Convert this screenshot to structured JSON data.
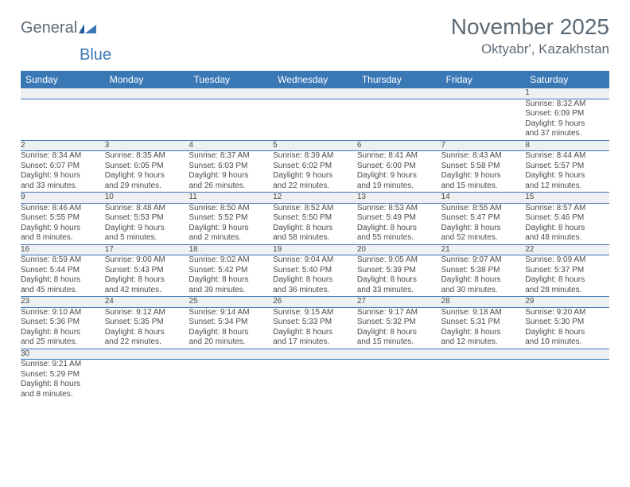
{
  "logo": {
    "text1": "General",
    "text2": "Blue"
  },
  "title": "November 2025",
  "location": "Oktyabr', Kazakhstan",
  "colors": {
    "header_bg": "#3a78b5",
    "header_text": "#ffffff",
    "daynum_bg": "#eef0f1",
    "text_gray": "#5f6b76",
    "body_text": "#4b4b4b",
    "rule": "#3a78b5"
  },
  "weekdays": [
    "Sunday",
    "Monday",
    "Tuesday",
    "Wednesday",
    "Thursday",
    "Friday",
    "Saturday"
  ],
  "weeks": [
    [
      null,
      null,
      null,
      null,
      null,
      null,
      {
        "n": "1",
        "sr": "Sunrise: 8:32 AM",
        "ss": "Sunset: 6:09 PM",
        "d1": "Daylight: 9 hours",
        "d2": "and 37 minutes."
      }
    ],
    [
      {
        "n": "2",
        "sr": "Sunrise: 8:34 AM",
        "ss": "Sunset: 6:07 PM",
        "d1": "Daylight: 9 hours",
        "d2": "and 33 minutes."
      },
      {
        "n": "3",
        "sr": "Sunrise: 8:35 AM",
        "ss": "Sunset: 6:05 PM",
        "d1": "Daylight: 9 hours",
        "d2": "and 29 minutes."
      },
      {
        "n": "4",
        "sr": "Sunrise: 8:37 AM",
        "ss": "Sunset: 6:03 PM",
        "d1": "Daylight: 9 hours",
        "d2": "and 26 minutes."
      },
      {
        "n": "5",
        "sr": "Sunrise: 8:39 AM",
        "ss": "Sunset: 6:02 PM",
        "d1": "Daylight: 9 hours",
        "d2": "and 22 minutes."
      },
      {
        "n": "6",
        "sr": "Sunrise: 8:41 AM",
        "ss": "Sunset: 6:00 PM",
        "d1": "Daylight: 9 hours",
        "d2": "and 19 minutes."
      },
      {
        "n": "7",
        "sr": "Sunrise: 8:43 AM",
        "ss": "Sunset: 5:58 PM",
        "d1": "Daylight: 9 hours",
        "d2": "and 15 minutes."
      },
      {
        "n": "8",
        "sr": "Sunrise: 8:44 AM",
        "ss": "Sunset: 5:57 PM",
        "d1": "Daylight: 9 hours",
        "d2": "and 12 minutes."
      }
    ],
    [
      {
        "n": "9",
        "sr": "Sunrise: 8:46 AM",
        "ss": "Sunset: 5:55 PM",
        "d1": "Daylight: 9 hours",
        "d2": "and 8 minutes."
      },
      {
        "n": "10",
        "sr": "Sunrise: 8:48 AM",
        "ss": "Sunset: 5:53 PM",
        "d1": "Daylight: 9 hours",
        "d2": "and 5 minutes."
      },
      {
        "n": "11",
        "sr": "Sunrise: 8:50 AM",
        "ss": "Sunset: 5:52 PM",
        "d1": "Daylight: 9 hours",
        "d2": "and 2 minutes."
      },
      {
        "n": "12",
        "sr": "Sunrise: 8:52 AM",
        "ss": "Sunset: 5:50 PM",
        "d1": "Daylight: 8 hours",
        "d2": "and 58 minutes."
      },
      {
        "n": "13",
        "sr": "Sunrise: 8:53 AM",
        "ss": "Sunset: 5:49 PM",
        "d1": "Daylight: 8 hours",
        "d2": "and 55 minutes."
      },
      {
        "n": "14",
        "sr": "Sunrise: 8:55 AM",
        "ss": "Sunset: 5:47 PM",
        "d1": "Daylight: 8 hours",
        "d2": "and 52 minutes."
      },
      {
        "n": "15",
        "sr": "Sunrise: 8:57 AM",
        "ss": "Sunset: 5:46 PM",
        "d1": "Daylight: 8 hours",
        "d2": "and 48 minutes."
      }
    ],
    [
      {
        "n": "16",
        "sr": "Sunrise: 8:59 AM",
        "ss": "Sunset: 5:44 PM",
        "d1": "Daylight: 8 hours",
        "d2": "and 45 minutes."
      },
      {
        "n": "17",
        "sr": "Sunrise: 9:00 AM",
        "ss": "Sunset: 5:43 PM",
        "d1": "Daylight: 8 hours",
        "d2": "and 42 minutes."
      },
      {
        "n": "18",
        "sr": "Sunrise: 9:02 AM",
        "ss": "Sunset: 5:42 PM",
        "d1": "Daylight: 8 hours",
        "d2": "and 39 minutes."
      },
      {
        "n": "19",
        "sr": "Sunrise: 9:04 AM",
        "ss": "Sunset: 5:40 PM",
        "d1": "Daylight: 8 hours",
        "d2": "and 36 minutes."
      },
      {
        "n": "20",
        "sr": "Sunrise: 9:05 AM",
        "ss": "Sunset: 5:39 PM",
        "d1": "Daylight: 8 hours",
        "d2": "and 33 minutes."
      },
      {
        "n": "21",
        "sr": "Sunrise: 9:07 AM",
        "ss": "Sunset: 5:38 PM",
        "d1": "Daylight: 8 hours",
        "d2": "and 30 minutes."
      },
      {
        "n": "22",
        "sr": "Sunrise: 9:09 AM",
        "ss": "Sunset: 5:37 PM",
        "d1": "Daylight: 8 hours",
        "d2": "and 28 minutes."
      }
    ],
    [
      {
        "n": "23",
        "sr": "Sunrise: 9:10 AM",
        "ss": "Sunset: 5:36 PM",
        "d1": "Daylight: 8 hours",
        "d2": "and 25 minutes."
      },
      {
        "n": "24",
        "sr": "Sunrise: 9:12 AM",
        "ss": "Sunset: 5:35 PM",
        "d1": "Daylight: 8 hours",
        "d2": "and 22 minutes."
      },
      {
        "n": "25",
        "sr": "Sunrise: 9:14 AM",
        "ss": "Sunset: 5:34 PM",
        "d1": "Daylight: 8 hours",
        "d2": "and 20 minutes."
      },
      {
        "n": "26",
        "sr": "Sunrise: 9:15 AM",
        "ss": "Sunset: 5:33 PM",
        "d1": "Daylight: 8 hours",
        "d2": "and 17 minutes."
      },
      {
        "n": "27",
        "sr": "Sunrise: 9:17 AM",
        "ss": "Sunset: 5:32 PM",
        "d1": "Daylight: 8 hours",
        "d2": "and 15 minutes."
      },
      {
        "n": "28",
        "sr": "Sunrise: 9:18 AM",
        "ss": "Sunset: 5:31 PM",
        "d1": "Daylight: 8 hours",
        "d2": "and 12 minutes."
      },
      {
        "n": "29",
        "sr": "Sunrise: 9:20 AM",
        "ss": "Sunset: 5:30 PM",
        "d1": "Daylight: 8 hours",
        "d2": "and 10 minutes."
      }
    ],
    [
      {
        "n": "30",
        "sr": "Sunrise: 9:21 AM",
        "ss": "Sunset: 5:29 PM",
        "d1": "Daylight: 8 hours",
        "d2": "and 8 minutes."
      },
      null,
      null,
      null,
      null,
      null,
      null
    ]
  ]
}
